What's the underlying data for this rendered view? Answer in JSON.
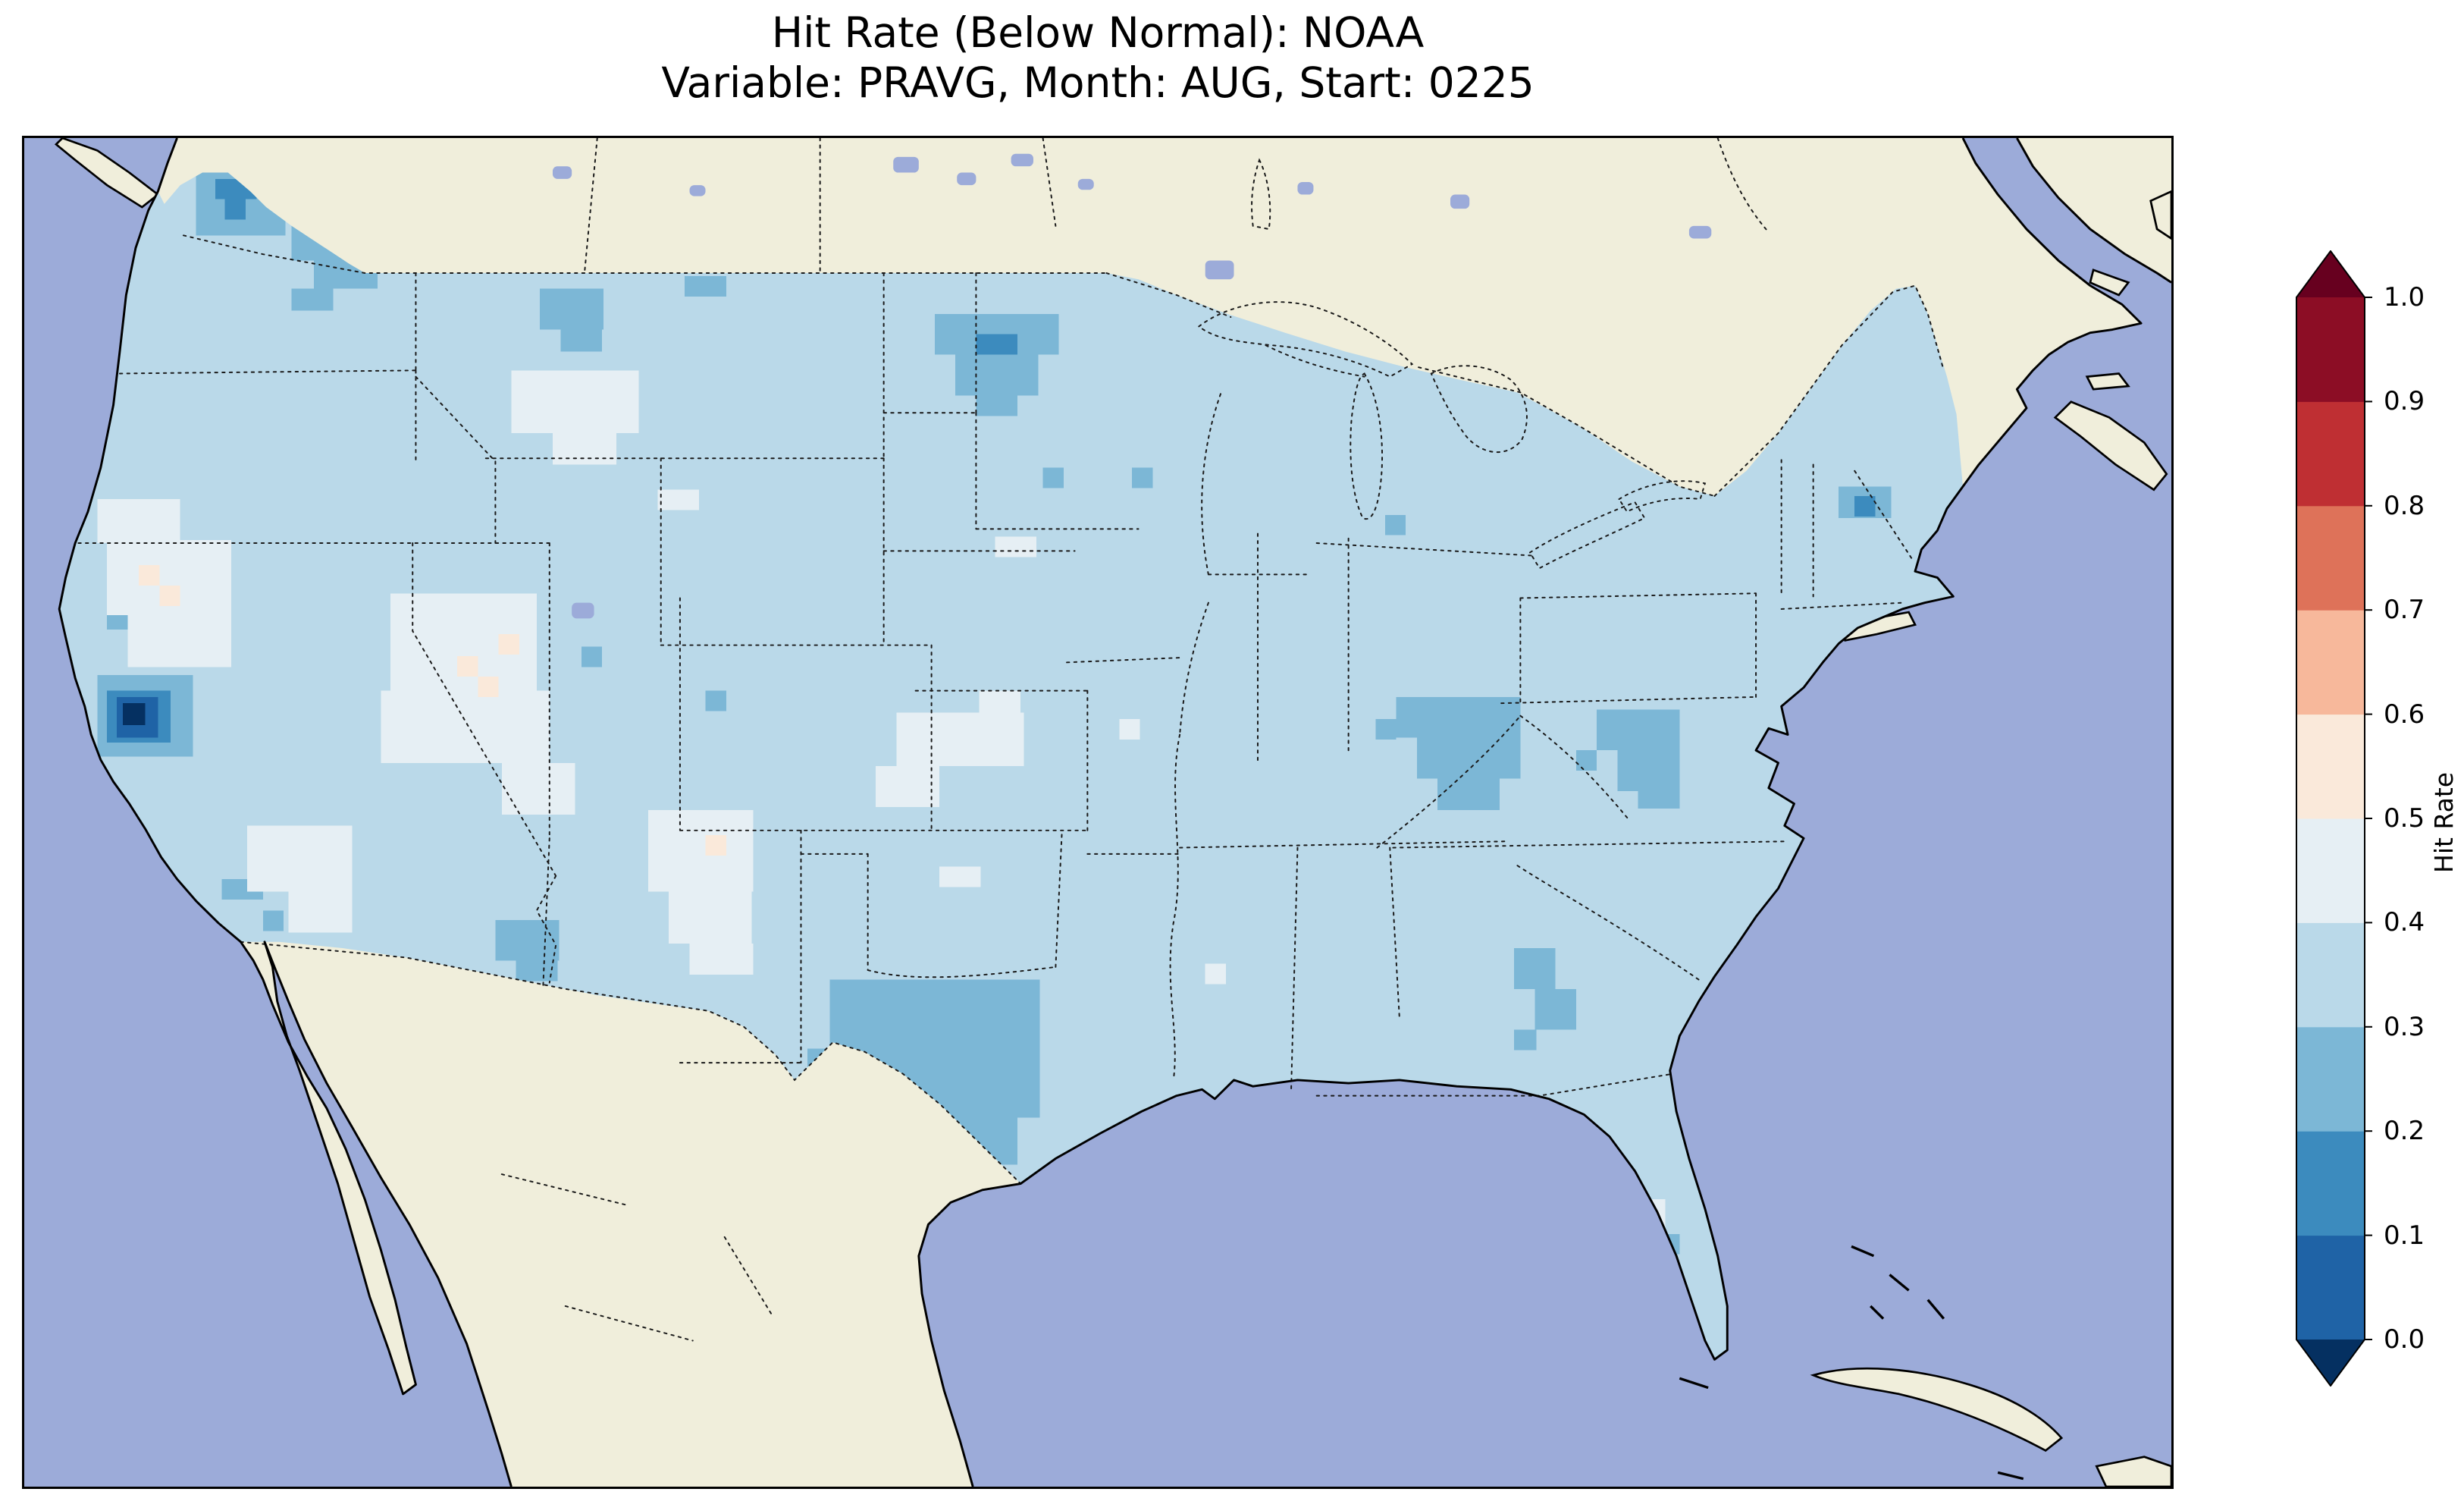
{
  "title": {
    "line1": "Hit Rate (Below Normal): NOAA",
    "line2": "Variable: PRAVG, Month: AUG, Start: 0225"
  },
  "colorbar": {
    "label": "Hit Rate",
    "ticks": [
      "1.0",
      "0.9",
      "0.8",
      "0.7",
      "0.6",
      "0.5",
      "0.4",
      "0.3",
      "0.2",
      "0.1",
      "0.0"
    ],
    "extend": "both",
    "under_color": "#053061",
    "over_color": "#67001f",
    "segments": [
      {
        "from": 0.0,
        "to": 0.1,
        "color": "#1f63a6"
      },
      {
        "from": 0.1,
        "to": 0.2,
        "color": "#3c8bbe"
      },
      {
        "from": 0.2,
        "to": 0.3,
        "color": "#7cb7d6"
      },
      {
        "from": 0.3,
        "to": 0.4,
        "color": "#bad9e9"
      },
      {
        "from": 0.4,
        "to": 0.5,
        "color": "#e6eff4"
      },
      {
        "from": 0.5,
        "to": 0.6,
        "color": "#fae9da"
      },
      {
        "from": 0.6,
        "to": 0.7,
        "color": "#f7b89b"
      },
      {
        "from": 0.7,
        "to": 0.8,
        "color": "#de7259"
      },
      {
        "from": 0.8,
        "to": 0.9,
        "color": "#bf2f33"
      },
      {
        "from": 0.9,
        "to": 1.0,
        "color": "#8c0d25"
      }
    ]
  },
  "map": {
    "colors": {
      "ocean": "#9cabd9",
      "land": "#f0eedb",
      "coastline": "#000000",
      "borders": "#1a1a1a"
    }
  },
  "chart_data": {
    "type": "heatmap",
    "subtype": "gridded geographic hit-rate map (CONUS)",
    "title": "Hit Rate (Below Normal): NOAA",
    "subtitle": "Variable: PRAVG, Month: AUG, Start: 0225",
    "source_label": "NOAA",
    "variable": "PRAVG",
    "month": "AUG",
    "start": "0225",
    "colorbar_label": "Hit Rate",
    "colorbar_range": [
      0.0,
      1.0
    ],
    "colorbar_tick_step": 0.1,
    "colorbar_extend": "both",
    "legend_position": "right",
    "dominant_bin": "0.3-0.4",
    "features": [
      {
        "area": "Most of CONUS background",
        "hit_rate_bin": "0.3-0.4"
      },
      {
        "area": "Central California (Sierra foothills) dark spot",
        "hit_rate_bin": "0.0-0.1"
      },
      {
        "area": "Puget Sound / NW Washington",
        "hit_rate_bin": "0.1-0.2"
      },
      {
        "area": "Eastern Washington",
        "hit_rate_bin": "0.2-0.3"
      },
      {
        "area": "Northern Idaho / western Montana spots",
        "hit_rate_bin": "0.2-0.3"
      },
      {
        "area": "North Dakota / Minnesota border blob",
        "hit_rate_bin": "0.2-0.3"
      },
      {
        "area": "Central Texas large patch",
        "hit_rate_bin": "0.2-0.3"
      },
      {
        "area": "Kentucky / southern Indiana patch",
        "hit_rate_bin": "0.2-0.3"
      },
      {
        "area": "West Virginia / Ohio patch",
        "hit_rate_bin": "0.2-0.3"
      },
      {
        "area": "Central Georgia patch",
        "hit_rate_bin": "0.2-0.3"
      },
      {
        "area": "New York City area cells",
        "hit_rate_bin": "0.1-0.3"
      },
      {
        "area": "Nevada / Utah Great Basin pale region",
        "hit_rate_bin": "0.4-0.6"
      },
      {
        "area": "California Central Valley pale region",
        "hit_rate_bin": "0.4-0.6"
      },
      {
        "area": "Western Montana pale patch",
        "hit_rate_bin": "0.4-0.5"
      },
      {
        "area": "New Mexico / West Texas pale patch",
        "hit_rate_bin": "0.4-0.5"
      },
      {
        "area": "Central Kansas pale patch",
        "hit_rate_bin": "0.4-0.5"
      },
      {
        "area": "South Florida pale cells",
        "hit_rate_bin": "0.4-0.6"
      }
    ],
    "no_data_regions": [
      "Canada",
      "Mexico",
      "Caribbean",
      "oceans",
      "Great Lakes"
    ]
  }
}
